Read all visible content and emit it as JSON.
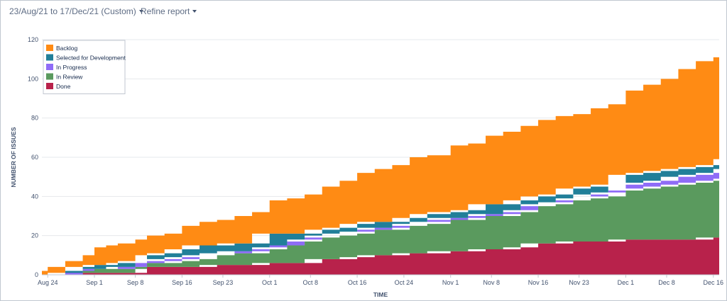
{
  "toolbar": {
    "date_range_label": "23/Aug/21 to 17/Dec/21 (Custom)",
    "refine_label": "Refine report"
  },
  "colors": {
    "backlog": "#ff8b14",
    "selected": "#217f99",
    "in_progress": "#8f6cf7",
    "in_review": "#5a9a5e",
    "done": "#b8224b"
  },
  "chart_data": {
    "type": "area",
    "stacked": true,
    "xlabel": "TIME",
    "ylabel": "NUMBER OF ISSUES",
    "ylim": [
      0,
      120
    ],
    "y_ticks": [
      0,
      20,
      40,
      60,
      80,
      100,
      120
    ],
    "grid": true,
    "legend_position": "top-left",
    "x_ticks": [
      {
        "date": "2021-08-24",
        "label": "Aug 24"
      },
      {
        "date": "2021-09-01",
        "label": "Sep 1"
      },
      {
        "date": "2021-09-08",
        "label": "Sep 8"
      },
      {
        "date": "2021-09-16",
        "label": "Sep 16"
      },
      {
        "date": "2021-09-23",
        "label": "Sep 23"
      },
      {
        "date": "2021-10-01",
        "label": "Oct 1"
      },
      {
        "date": "2021-10-08",
        "label": "Oct 8"
      },
      {
        "date": "2021-10-16",
        "label": "Oct 16"
      },
      {
        "date": "2021-10-24",
        "label": "Oct 24"
      },
      {
        "date": "2021-11-01",
        "label": "Nov 1"
      },
      {
        "date": "2021-11-08",
        "label": "Nov 8"
      },
      {
        "date": "2021-11-16",
        "label": "Nov 16"
      },
      {
        "date": "2021-11-23",
        "label": "Nov 23"
      },
      {
        "date": "2021-12-01",
        "label": "Dec 1"
      },
      {
        "date": "2021-12-08",
        "label": "Dec 8"
      },
      {
        "date": "2021-12-16",
        "label": "Dec 16"
      }
    ],
    "x": [
      "2021-08-23",
      "2021-08-24",
      "2021-08-27",
      "2021-08-30",
      "2021-09-01",
      "2021-09-03",
      "2021-09-05",
      "2021-09-08",
      "2021-09-10",
      "2021-09-13",
      "2021-09-16",
      "2021-09-19",
      "2021-09-22",
      "2021-09-25",
      "2021-09-28",
      "2021-10-01",
      "2021-10-04",
      "2021-10-07",
      "2021-10-10",
      "2021-10-13",
      "2021-10-16",
      "2021-10-19",
      "2021-10-22",
      "2021-10-25",
      "2021-10-28",
      "2021-11-01",
      "2021-11-04",
      "2021-11-07",
      "2021-11-10",
      "2021-11-13",
      "2021-11-16",
      "2021-11-19",
      "2021-11-22",
      "2021-11-25",
      "2021-11-28",
      "2021-12-01",
      "2021-12-04",
      "2021-12-07",
      "2021-12-10",
      "2021-12-13",
      "2021-12-16",
      "2021-12-17"
    ],
    "series": [
      {
        "name": "Done",
        "color_key": "done",
        "values": [
          0,
          0,
          0,
          1,
          1,
          1,
          1,
          1,
          4,
          4,
          4,
          4,
          5,
          5,
          5,
          6,
          6,
          6,
          8,
          8,
          9,
          10,
          10,
          11,
          11,
          12,
          12,
          13,
          13,
          14,
          16,
          16,
          17,
          17,
          17,
          18,
          18,
          18,
          18,
          18,
          19,
          19
        ]
      },
      {
        "name": "In Review",
        "color_key": "in_review",
        "values": [
          0,
          0,
          0,
          1,
          2,
          2,
          2,
          2,
          2,
          2,
          3,
          4,
          5,
          6,
          6,
          7,
          9,
          11,
          11,
          12,
          12,
          13,
          13,
          14,
          15,
          16,
          16,
          17,
          17,
          18,
          19,
          20,
          21,
          22,
          23,
          25,
          26,
          27,
          28,
          29,
          29,
          30
        ]
      },
      {
        "name": "In Progress",
        "color_key": "in_progress",
        "values": [
          0,
          0,
          0,
          0,
          0,
          0,
          1,
          1,
          1,
          2,
          2,
          2,
          1,
          1,
          1,
          1,
          0,
          1,
          1,
          1,
          1,
          1,
          1,
          1,
          1,
          1,
          1,
          1,
          1,
          1,
          1,
          1,
          1,
          2,
          2,
          3,
          3,
          3,
          4,
          4,
          4,
          5
        ]
      },
      {
        "name": "Selected for Development",
        "color_key": "selected",
        "values": [
          0,
          0,
          1,
          2,
          2,
          2,
          2,
          3,
          3,
          3,
          4,
          5,
          4,
          4,
          4,
          7,
          6,
          3,
          3,
          3,
          4,
          3,
          3,
          3,
          4,
          3,
          4,
          5,
          5,
          5,
          4,
          4,
          5,
          4,
          4,
          5,
          5,
          5,
          4,
          4,
          4,
          5
        ]
      },
      {
        "name": "Backlog",
        "color_key": "backlog",
        "values": [
          2,
          4,
          6,
          6,
          9,
          10,
          10,
          11,
          10,
          10,
          12,
          12,
          13,
          14,
          16,
          17,
          18,
          20,
          22,
          24,
          26,
          27,
          29,
          31,
          30,
          34,
          34,
          35,
          37,
          38,
          39,
          40,
          38,
          40,
          41,
          43,
          45,
          47,
          51,
          54,
          55,
          56
        ]
      }
    ],
    "legend_order": [
      "Backlog",
      "Selected for Development",
      "In Progress",
      "In Review",
      "Done"
    ]
  }
}
